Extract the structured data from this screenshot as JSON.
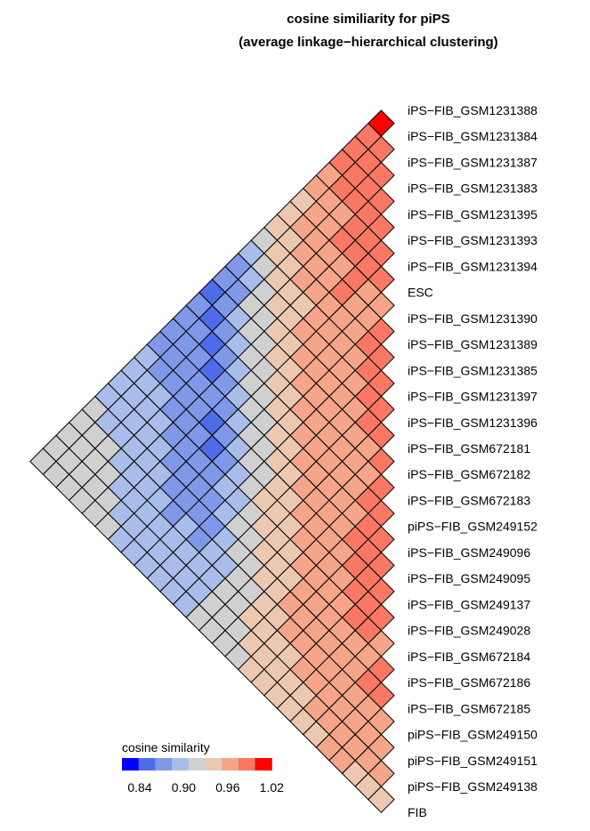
{
  "chart_data": {
    "type": "heatmap",
    "title": "cosine similiarity for piPS",
    "subtitle": "(average linkage−hierarchical clustering)",
    "labels": [
      "iPS−FIB_GSM1231388",
      "iPS−FIB_GSM1231384",
      "iPS−FIB_GSM1231387",
      "iPS−FIB_GSM1231383",
      "iPS−FIB_GSM1231395",
      "iPS−FIB_GSM1231393",
      "iPS−FIB_GSM1231394",
      "ESC",
      "iPS−FIB_GSM1231390",
      "iPS−FIB_GSM1231389",
      "iPS−FIB_GSM1231385",
      "iPS−FIB_GSM1231397",
      "iPS−FIB_GSM1231396",
      "iPS−FIB_GSM672181",
      "iPS−FIB_GSM672182",
      "iPS−FIB_GSM672183",
      "piPS−FIB_GSM249152",
      "iPS−FIB_GSM249096",
      "iPS−FIB_GSM249095",
      "iPS−FIB_GSM249137",
      "iPS−FIB_GSM249028",
      "iPS−FIB_GSM672184",
      "iPS−FIB_GSM672186",
      "iPS−FIB_GSM672185",
      "piPS−FIB_GSM249150",
      "piPS−FIB_GSM249151",
      "piPS−FIB_GSM249138",
      "FIB"
    ],
    "matrix_layout": "lower-triangle, values[i][j] = similarity between labels[i] and labels[j+1], j >= i",
    "values": [
      [
        1.0,
        0.99,
        0.98,
        0.98,
        0.97,
        0.96,
        0.95,
        0.95,
        0.94,
        0.93,
        0.91,
        0.89,
        0.88,
        0.87,
        0.88,
        0.88,
        0.89,
        0.89,
        0.9,
        0.91,
        0.91,
        0.91,
        0.93,
        0.93,
        0.93,
        0.93,
        0.93
      ],
      [
        0.99,
        0.98,
        0.99,
        0.98,
        0.97,
        0.96,
        0.96,
        0.95,
        0.94,
        0.92,
        0.91,
        0.89,
        0.88,
        0.87,
        0.88,
        0.88,
        0.89,
        0.89,
        0.9,
        0.91,
        0.91,
        0.91,
        0.93,
        0.93,
        0.93,
        0.93
      ],
      [
        0.98,
        0.98,
        0.98,
        0.97,
        0.97,
        0.97,
        0.96,
        0.95,
        0.94,
        0.93,
        0.92,
        0.91,
        0.89,
        0.87,
        0.88,
        0.89,
        0.89,
        0.9,
        0.9,
        0.91,
        0.91,
        0.92,
        0.93,
        0.93,
        0.93
      ],
      [
        0.99,
        0.98,
        0.99,
        0.98,
        0.97,
        0.96,
        0.96,
        0.95,
        0.94,
        0.93,
        0.92,
        0.91,
        0.89,
        0.87,
        0.88,
        0.89,
        0.89,
        0.9,
        0.9,
        0.91,
        0.91,
        0.92,
        0.93,
        0.93
      ],
      [
        0.99,
        0.98,
        0.98,
        0.97,
        0.97,
        0.96,
        0.95,
        0.95,
        0.94,
        0.93,
        0.92,
        0.9,
        0.88,
        0.88,
        0.88,
        0.88,
        0.89,
        0.9,
        0.9,
        0.9,
        0.91,
        0.92,
        0.93
      ],
      [
        0.99,
        0.98,
        0.98,
        0.98,
        0.97,
        0.96,
        0.96,
        0.95,
        0.94,
        0.93,
        0.92,
        0.9,
        0.89,
        0.87,
        0.88,
        0.88,
        0.89,
        0.9,
        0.9,
        0.9,
        0.91,
        0.92
      ],
      [
        0.98,
        0.97,
        0.97,
        0.97,
        0.97,
        0.96,
        0.96,
        0.95,
        0.94,
        0.93,
        0.92,
        0.9,
        0.89,
        0.87,
        0.88,
        0.88,
        0.89,
        0.9,
        0.9,
        0.9,
        0.91
      ],
      [
        0.97,
        0.97,
        0.96,
        0.96,
        0.96,
        0.96,
        0.96,
        0.95,
        0.94,
        0.93,
        0.92,
        0.91,
        0.89,
        0.88,
        0.88,
        0.89,
        0.89,
        0.9,
        0.9,
        0.91
      ],
      [
        0.99,
        0.98,
        0.97,
        0.97,
        0.96,
        0.96,
        0.96,
        0.95,
        0.94,
        0.93,
        0.92,
        0.91,
        0.9,
        0.89,
        0.89,
        0.9,
        0.9,
        0.9,
        0.91
      ],
      [
        0.98,
        0.98,
        0.97,
        0.97,
        0.96,
        0.96,
        0.96,
        0.95,
        0.94,
        0.93,
        0.93,
        0.91,
        0.9,
        0.89,
        0.89,
        0.9,
        0.9,
        0.91
      ],
      [
        0.98,
        0.98,
        0.97,
        0.97,
        0.96,
        0.96,
        0.96,
        0.95,
        0.95,
        0.94,
        0.93,
        0.92,
        0.91,
        0.9,
        0.9,
        0.9,
        0.91
      ],
      [
        0.99,
        0.98,
        0.97,
        0.97,
        0.96,
        0.96,
        0.96,
        0.95,
        0.95,
        0.94,
        0.93,
        0.92,
        0.91,
        0.91,
        0.91,
        0.91
      ],
      [
        0.98,
        0.97,
        0.97,
        0.97,
        0.96,
        0.96,
        0.96,
        0.95,
        0.95,
        0.94,
        0.93,
        0.92,
        0.92,
        0.92,
        0.92
      ],
      [
        0.98,
        0.97,
        0.97,
        0.97,
        0.96,
        0.96,
        0.96,
        0.95,
        0.95,
        0.94,
        0.93,
        0.93,
        0.93,
        0.92
      ],
      [
        0.99,
        0.98,
        0.97,
        0.97,
        0.97,
        0.96,
        0.96,
        0.95,
        0.95,
        0.94,
        0.94,
        0.93,
        0.93
      ],
      [
        0.98,
        0.98,
        0.98,
        0.97,
        0.97,
        0.96,
        0.96,
        0.96,
        0.95,
        0.94,
        0.94,
        0.93
      ],
      [
        0.98,
        0.98,
        0.98,
        0.97,
        0.97,
        0.97,
        0.96,
        0.96,
        0.95,
        0.95,
        0.94
      ],
      [
        0.99,
        0.98,
        0.98,
        0.97,
        0.97,
        0.96,
        0.96,
        0.95,
        0.95,
        0.94
      ],
      [
        0.99,
        0.98,
        0.98,
        0.97,
        0.97,
        0.96,
        0.96,
        0.95,
        0.95
      ],
      [
        0.98,
        0.98,
        0.97,
        0.97,
        0.96,
        0.96,
        0.95,
        0.95
      ],
      [
        0.97,
        0.97,
        0.97,
        0.96,
        0.96,
        0.96,
        0.95
      ],
      [
        0.99,
        0.98,
        0.97,
        0.96,
        0.96,
        0.95
      ],
      [
        0.98,
        0.97,
        0.97,
        0.96,
        0.96
      ],
      [
        0.97,
        0.97,
        0.96,
        0.96
      ],
      [
        0.96,
        0.96,
        0.95
      ],
      [
        0.96,
        0.95
      ],
      [
        0.95
      ]
    ],
    "legend": {
      "title": "cosine similarity",
      "ticks": [
        "0.84",
        "0.90",
        "0.96",
        "1.02"
      ],
      "breaks": [
        0.84,
        0.86,
        0.88,
        0.9,
        0.92,
        0.94,
        0.96,
        0.98,
        1.0,
        1.02
      ],
      "colors": [
        "#0000ff",
        "#4d6de8",
        "#7f98e8",
        "#a8bde9",
        "#d0d0d0",
        "#ecc8b1",
        "#f4a58a",
        "#f97863",
        "#ff0000"
      ]
    },
    "grid": false,
    "legend_position": "bottom-left"
  }
}
